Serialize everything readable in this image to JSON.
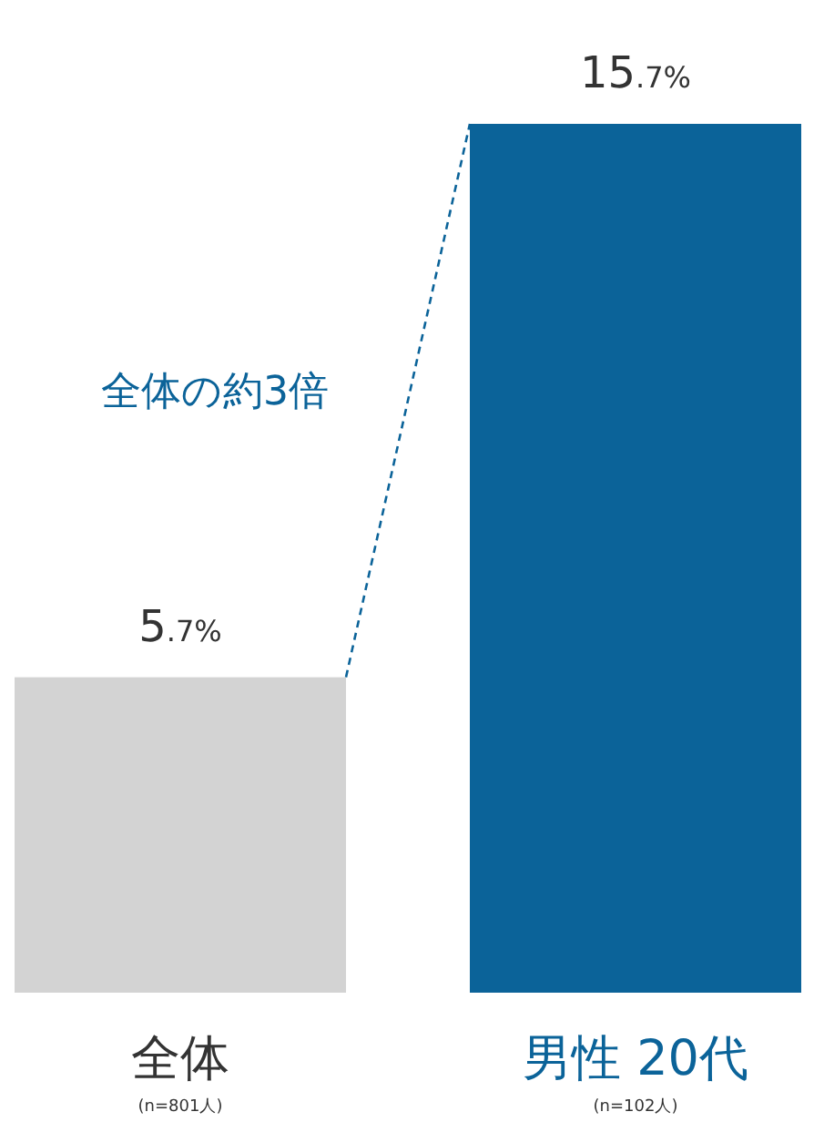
{
  "chart_data": {
    "type": "bar",
    "categories": [
      "全体\n(n=801人)",
      "男性 20代\n(n=102人)"
    ],
    "values": [
      5.7,
      15.7
    ],
    "colors": [
      "#d3d3d3",
      "#0b6399"
    ],
    "value_labels": [
      "5.7%",
      "15.7%"
    ],
    "annotations": [
      "全体の約3倍"
    ]
  }
}
